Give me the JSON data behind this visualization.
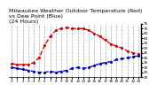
{
  "title": "Milwaukee Weather Outdoor Temperature (Red)\nvs Dew Point (Blue)\n(24 Hours)",
  "title_fontsize": 4.5,
  "xlabel": "",
  "ylabel": "",
  "background_color": "#ffffff",
  "grid_color": "#aaaaaa",
  "x_ticks": [
    0,
    1,
    2,
    3,
    4,
    5,
    6,
    7,
    8,
    9,
    10,
    11,
    12,
    13,
    14,
    15,
    16,
    17,
    18,
    19,
    20,
    21,
    22,
    23
  ],
  "x_tick_labels": [
    "0",
    "1",
    "2",
    "3",
    "4",
    "5",
    "6",
    "7",
    "8",
    "9",
    "10",
    "11",
    "12",
    "13",
    "14",
    "15",
    "16",
    "17",
    "18",
    "19",
    "20",
    "21",
    "22",
    "23"
  ],
  "ylim": [
    20,
    75
  ],
  "y_ticks": [
    20,
    25,
    30,
    35,
    40,
    45,
    50,
    55,
    60,
    65,
    70,
    75
  ],
  "y_tick_labels": [
    "20",
    "25",
    "30",
    "35",
    "40",
    "45",
    "50",
    "55",
    "60",
    "65",
    "70",
    "75"
  ],
  "temp_x": [
    0,
    1,
    2,
    3,
    4,
    5,
    6,
    7,
    8,
    9,
    10,
    11,
    12,
    13,
    14,
    15,
    16,
    17,
    18,
    19,
    20,
    21,
    22,
    23
  ],
  "temp_y": [
    34,
    33,
    33,
    33,
    35,
    40,
    53,
    62,
    68,
    70,
    71,
    70,
    70,
    70,
    68,
    65,
    62,
    58,
    54,
    52,
    50,
    47,
    45,
    44
  ],
  "dew_x": [
    0,
    1,
    2,
    3,
    4,
    5,
    6,
    7,
    8,
    9,
    10,
    11,
    12,
    13,
    14,
    15,
    16,
    17,
    18,
    19,
    20,
    21,
    22,
    23
  ],
  "dew_y": [
    30,
    29,
    28,
    27,
    26,
    25,
    25,
    26,
    25,
    26,
    27,
    29,
    30,
    29,
    30,
    32,
    34,
    35,
    36,
    38,
    39,
    40,
    41,
    42
  ],
  "temp_color": "#dd0000",
  "dew_color": "#0000cc",
  "line_style": "--",
  "marker": ".",
  "marker_size": 2.5,
  "line_width": 1.0
}
